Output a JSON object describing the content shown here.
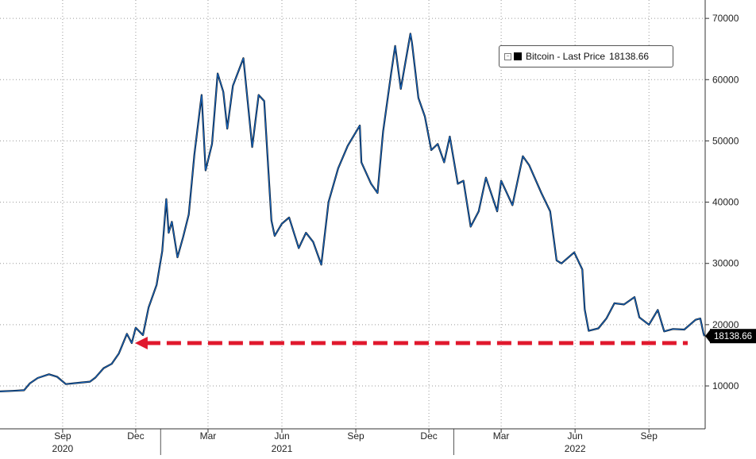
{
  "chart_data": {
    "type": "line",
    "title": "",
    "xlabel": "",
    "ylabel": "",
    "ylim": [
      3000,
      73000
    ],
    "x_range": [
      "2020-06-15",
      "2022-11-10"
    ],
    "y_ticks": [
      10000,
      20000,
      30000,
      40000,
      50000,
      60000,
      70000
    ],
    "y_tick_labels": [
      "10000",
      "20000",
      "30000",
      "40000",
      "50000",
      "60000",
      "70000"
    ],
    "x_month_ticks": [
      {
        "date": "2020-09-01",
        "label": "Sep"
      },
      {
        "date": "2020-12-01",
        "label": "Dec"
      },
      {
        "date": "2021-03-01",
        "label": "Mar"
      },
      {
        "date": "2021-06-01",
        "label": "Jun"
      },
      {
        "date": "2021-09-01",
        "label": "Sep"
      },
      {
        "date": "2021-12-01",
        "label": "Dec"
      },
      {
        "date": "2022-03-01",
        "label": "Mar"
      },
      {
        "date": "2022-06-01",
        "label": "Jun"
      },
      {
        "date": "2022-09-01",
        "label": "Sep"
      }
    ],
    "x_year_labels": [
      {
        "date": "2020-09-01",
        "label": "2020"
      },
      {
        "date": "2021-06-01",
        "label": "2021"
      },
      {
        "date": "2022-06-01",
        "label": "2022"
      }
    ],
    "year_dividers": [
      "2021-01-01",
      "2022-01-01"
    ],
    "grid": true,
    "legend_position": "top-right",
    "series": [
      {
        "name": "Bitcoin - Last Price",
        "last_value": "18138.66",
        "color": "#1565c0",
        "points": [
          [
            "2020-06-15",
            9100
          ],
          [
            "2020-07-01",
            9200
          ],
          [
            "2020-07-15",
            9300
          ],
          [
            "2020-07-22",
            10400
          ],
          [
            "2020-08-01",
            11300
          ],
          [
            "2020-08-15",
            11900
          ],
          [
            "2020-08-25",
            11500
          ],
          [
            "2020-09-05",
            10300
          ],
          [
            "2020-09-20",
            10500
          ],
          [
            "2020-10-05",
            10700
          ],
          [
            "2020-10-12",
            11400
          ],
          [
            "2020-10-22",
            12900
          ],
          [
            "2020-11-01",
            13600
          ],
          [
            "2020-11-10",
            15300
          ],
          [
            "2020-11-20",
            18500
          ],
          [
            "2020-11-26",
            17000
          ],
          [
            "2020-12-01",
            19500
          ],
          [
            "2020-12-10",
            18300
          ],
          [
            "2020-12-17",
            22800
          ],
          [
            "2020-12-27",
            26500
          ],
          [
            "2021-01-03",
            32000
          ],
          [
            "2021-01-08",
            40500
          ],
          [
            "2021-01-11",
            35000
          ],
          [
            "2021-01-15",
            36800
          ],
          [
            "2021-01-22",
            31000
          ],
          [
            "2021-01-29",
            34300
          ],
          [
            "2021-02-05",
            38000
          ],
          [
            "2021-02-12",
            47800
          ],
          [
            "2021-02-21",
            57500
          ],
          [
            "2021-02-26",
            45200
          ],
          [
            "2021-03-06",
            49500
          ],
          [
            "2021-03-13",
            61000
          ],
          [
            "2021-03-20",
            58000
          ],
          [
            "2021-03-25",
            52000
          ],
          [
            "2021-04-01",
            59000
          ],
          [
            "2021-04-14",
            63500
          ],
          [
            "2021-04-25",
            49000
          ],
          [
            "2021-05-03",
            57500
          ],
          [
            "2021-05-10",
            56500
          ],
          [
            "2021-05-19",
            37000
          ],
          [
            "2021-05-23",
            34500
          ],
          [
            "2021-06-01",
            36500
          ],
          [
            "2021-06-10",
            37500
          ],
          [
            "2021-06-22",
            32500
          ],
          [
            "2021-07-01",
            35000
          ],
          [
            "2021-07-10",
            33500
          ],
          [
            "2021-07-20",
            29800
          ],
          [
            "2021-07-29",
            40000
          ],
          [
            "2021-08-10",
            45500
          ],
          [
            "2021-08-22",
            49200
          ],
          [
            "2021-09-06",
            52500
          ],
          [
            "2021-09-08",
            46500
          ],
          [
            "2021-09-20",
            43000
          ],
          [
            "2021-09-28",
            41500
          ],
          [
            "2021-10-05",
            51500
          ],
          [
            "2021-10-15",
            61000
          ],
          [
            "2021-10-20",
            65500
          ],
          [
            "2021-10-27",
            58500
          ],
          [
            "2021-11-08",
            67500
          ],
          [
            "2021-11-10",
            66000
          ],
          [
            "2021-11-18",
            57000
          ],
          [
            "2021-11-26",
            54000
          ],
          [
            "2021-12-04",
            48500
          ],
          [
            "2021-12-12",
            49500
          ],
          [
            "2021-12-20",
            46500
          ],
          [
            "2021-12-27",
            50700
          ],
          [
            "2022-01-06",
            43000
          ],
          [
            "2022-01-13",
            43500
          ],
          [
            "2022-01-22",
            36000
          ],
          [
            "2022-02-01",
            38500
          ],
          [
            "2022-02-10",
            44000
          ],
          [
            "2022-02-24",
            38500
          ],
          [
            "2022-03-01",
            43500
          ],
          [
            "2022-03-15",
            39500
          ],
          [
            "2022-03-28",
            47500
          ],
          [
            "2022-04-05",
            46000
          ],
          [
            "2022-04-20",
            41500
          ],
          [
            "2022-05-01",
            38500
          ],
          [
            "2022-05-09",
            30500
          ],
          [
            "2022-05-15",
            30000
          ],
          [
            "2022-05-31",
            31800
          ],
          [
            "2022-06-10",
            29000
          ],
          [
            "2022-06-13",
            22500
          ],
          [
            "2022-06-18",
            19000
          ],
          [
            "2022-06-30",
            19400
          ],
          [
            "2022-07-10",
            21000
          ],
          [
            "2022-07-20",
            23500
          ],
          [
            "2022-08-01",
            23300
          ],
          [
            "2022-08-14",
            24500
          ],
          [
            "2022-08-20",
            21200
          ],
          [
            "2022-09-01",
            20000
          ],
          [
            "2022-09-12",
            22400
          ],
          [
            "2022-09-20",
            18900
          ],
          [
            "2022-10-01",
            19300
          ],
          [
            "2022-10-15",
            19200
          ],
          [
            "2022-10-29",
            20800
          ],
          [
            "2022-11-04",
            21000
          ],
          [
            "2022-11-08",
            18500
          ],
          [
            "2022-11-09",
            18138.66
          ]
        ]
      }
    ],
    "reference_line": {
      "value": 17000,
      "from_date": "2020-11-30",
      "to_date": "2022-11-10",
      "color": "#e0182d",
      "style": "dashed-arrow"
    }
  }
}
